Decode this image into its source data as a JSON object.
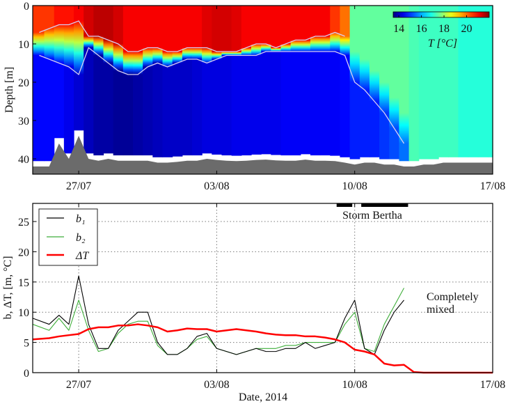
{
  "chart_data": [
    {
      "type": "heatmap",
      "ylabel": "Depth [m]",
      "ylim": [
        44,
        0
      ],
      "yticks": [
        0,
        10,
        20,
        30,
        40
      ],
      "xlim": [
        "2014-07-24T16:00",
        "2014-08-17T00:00"
      ],
      "xticks": [
        {
          "date": "2014-07-27T00:00",
          "label": "27/07"
        },
        {
          "date": "2014-08-03T00:00",
          "label": "03/08"
        },
        {
          "date": "2014-08-10T00:00",
          "label": "10/08"
        },
        {
          "date": "2014-08-17T00:00",
          "label": "17/08"
        }
      ],
      "colorbar": {
        "label": "T [°C]",
        "range": [
          13.5,
          22
        ],
        "ticks": [
          14,
          16,
          18,
          20
        ],
        "colormap": "jet"
      },
      "colors": {
        "seabed": "#6b6b6b",
        "isotherm_lines": "#d8cff2",
        "no_data": "#ffffff"
      },
      "x": [
        "2014-07-25T00:00",
        "2014-07-25T12:00",
        "2014-07-26T00:00",
        "2014-07-26T12:00",
        "2014-07-27T00:00",
        "2014-07-27T12:00",
        "2014-07-28T00:00",
        "2014-07-28T12:00",
        "2014-07-29T00:00",
        "2014-07-29T12:00",
        "2014-07-30T00:00",
        "2014-07-30T12:00",
        "2014-07-31T00:00",
        "2014-07-31T12:00",
        "2014-08-01T00:00",
        "2014-08-01T12:00",
        "2014-08-02T00:00",
        "2014-08-02T12:00",
        "2014-08-03T00:00",
        "2014-08-03T12:00",
        "2014-08-04T00:00",
        "2014-08-04T12:00",
        "2014-08-05T00:00",
        "2014-08-05T12:00",
        "2014-08-06T00:00",
        "2014-08-06T12:00",
        "2014-08-07T00:00",
        "2014-08-07T12:00",
        "2014-08-08T00:00",
        "2014-08-08T12:00",
        "2014-08-09T00:00",
        "2014-08-09T12:00",
        "2014-08-10T00:00",
        "2014-08-10T12:00",
        "2014-08-11T00:00",
        "2014-08-11T12:00",
        "2014-08-12T00:00",
        "2014-08-12T12:00",
        "2014-08-13T00:00",
        "2014-08-13T12:00",
        "2014-08-14T00:00",
        "2014-08-14T12:00",
        "2014-08-15T00:00",
        "2014-08-15T12:00",
        "2014-08-16T00:00",
        "2014-08-16T12:00",
        "2014-08-17T00:00"
      ],
      "surface_T": [
        20.5,
        20.5,
        20.8,
        20.8,
        21,
        21.3,
        21.5,
        21.5,
        21.3,
        21,
        21,
        21,
        21,
        21,
        21,
        21,
        21,
        21.2,
        21.3,
        21.3,
        21.2,
        21,
        21,
        21,
        21,
        21,
        21,
        21,
        21,
        21,
        20.5,
        20,
        17.5,
        17.5,
        17.5,
        17.5,
        17.5,
        17.5,
        17.3,
        17.2,
        17.2,
        17.2,
        17.2,
        17,
        17,
        17,
        17
      ],
      "upper_isotherm_depth": [
        7,
        6,
        5,
        5,
        4,
        8,
        8,
        9,
        10,
        12,
        12,
        11,
        11,
        12,
        12,
        11,
        11,
        11,
        12,
        12,
        12,
        11,
        10,
        10,
        11,
        10,
        9,
        9,
        8,
        8,
        7,
        8,
        null,
        null,
        null,
        null,
        null,
        null,
        null,
        null,
        null,
        null,
        null,
        null,
        null,
        null,
        null
      ],
      "lower_isotherm_depth": [
        13,
        14,
        15,
        16,
        18,
        11,
        13,
        15,
        17,
        18,
        18,
        16,
        15,
        16,
        15,
        14,
        14,
        15,
        14,
        13,
        13,
        13,
        13,
        12,
        12,
        12,
        12,
        12,
        12,
        12,
        12,
        13,
        20,
        22,
        25,
        28,
        32,
        36,
        null,
        null,
        null,
        null,
        null,
        null,
        null,
        null,
        null
      ],
      "deep_T": [
        14.6,
        14.6,
        14.6,
        14.4,
        14.2,
        14,
        13.8,
        13.8,
        13.7,
        13.7,
        13.8,
        13.9,
        14,
        14.1,
        14.1,
        14.1,
        14.2,
        14.3,
        14.3,
        14.3,
        14.4,
        14.4,
        14.4,
        14.4,
        14.4,
        14.5,
        14.5,
        14.5,
        14.5,
        14.5,
        14.5,
        14.6,
        14.8,
        14.8,
        14.8,
        15,
        15.2,
        15.5,
        null,
        null,
        null,
        null,
        null,
        null,
        null,
        null,
        null
      ],
      "seabed_depth": [
        42,
        42,
        36,
        40,
        34,
        40,
        40.5,
        40,
        40.5,
        40.5,
        40.5,
        40.5,
        41,
        41,
        40.8,
        40.5,
        40.5,
        40,
        40.3,
        40.5,
        40.6,
        40.5,
        40.3,
        40.2,
        40.4,
        40.5,
        40.5,
        40.2,
        40.5,
        40.5,
        40.6,
        41,
        41.5,
        41,
        41,
        41.5,
        41.5,
        42,
        42,
        41.5,
        41.5,
        41,
        41,
        41,
        41,
        41,
        41
      ]
    },
    {
      "type": "line",
      "xlabel": "Date, 2014",
      "ylabel": "b, ΔT, [m, °C]",
      "ylim": [
        0,
        28
      ],
      "yticks": [
        0,
        5,
        10,
        15,
        20,
        25
      ],
      "xlim": [
        "2014-07-24T16:00",
        "2014-08-17T00:00"
      ],
      "xticks": [
        {
          "date": "2014-07-27T00:00",
          "label": "27/07"
        },
        {
          "date": "2014-08-03T00:00",
          "label": "03/08"
        },
        {
          "date": "2014-08-10T00:00",
          "label": "10/08"
        },
        {
          "date": "2014-08-17T00:00",
          "label": "17/08"
        }
      ],
      "grid": true,
      "legend": "top-left",
      "x": [
        "2014-07-25T00:00",
        "2014-07-25T12:00",
        "2014-07-26T00:00",
        "2014-07-26T12:00",
        "2014-07-27T00:00",
        "2014-07-27T12:00",
        "2014-07-28T00:00",
        "2014-07-28T12:00",
        "2014-07-29T00:00",
        "2014-07-29T12:00",
        "2014-07-30T00:00",
        "2014-07-30T12:00",
        "2014-07-31T00:00",
        "2014-07-31T12:00",
        "2014-08-01T00:00",
        "2014-08-01T12:00",
        "2014-08-02T00:00",
        "2014-08-02T12:00",
        "2014-08-03T00:00",
        "2014-08-03T12:00",
        "2014-08-04T00:00",
        "2014-08-04T12:00",
        "2014-08-05T00:00",
        "2014-08-05T12:00",
        "2014-08-06T00:00",
        "2014-08-06T12:00",
        "2014-08-07T00:00",
        "2014-08-07T12:00",
        "2014-08-08T00:00",
        "2014-08-08T12:00",
        "2014-08-09T00:00",
        "2014-08-09T12:00",
        "2014-08-10T00:00",
        "2014-08-10T12:00",
        "2014-08-11T00:00",
        "2014-08-11T12:00",
        "2014-08-12T00:00",
        "2014-08-12T12:00",
        "2014-08-13T00:00",
        "2014-08-13T12:00",
        "2014-08-14T00:00",
        "2014-08-14T12:00",
        "2014-08-15T00:00",
        "2014-08-15T12:00",
        "2014-08-16T00:00",
        "2014-08-16T12:00",
        "2014-08-17T00:00"
      ],
      "series": [
        {
          "name": "b₁",
          "color": "#000000",
          "values": [
            9,
            8,
            9.5,
            8,
            16,
            8,
            4,
            4,
            7,
            8.5,
            10,
            10,
            5,
            3,
            3,
            4,
            6,
            6.5,
            4,
            3.5,
            3,
            3.5,
            4,
            3.5,
            3.5,
            4,
            4,
            5,
            4,
            4.5,
            5,
            9,
            12,
            4,
            3,
            7,
            10,
            12,
            null,
            null,
            null,
            null,
            null,
            null,
            null,
            null,
            null
          ]
        },
        {
          "name": "b₂",
          "color": "#3fae3a",
          "values": [
            8,
            7,
            9,
            7,
            12,
            7,
            3.5,
            4,
            6.5,
            8,
            8.5,
            8.5,
            4.5,
            3,
            3,
            4,
            5.5,
            6,
            4,
            3.5,
            3,
            3.5,
            4,
            4,
            4,
            4.5,
            4.5,
            5,
            5,
            5,
            5,
            8,
            10,
            4,
            3.5,
            8,
            11,
            14,
            null,
            null,
            null,
            null,
            null,
            null,
            null,
            null,
            null
          ]
        },
        {
          "name": "ΔT",
          "color": "#ff0000",
          "values": [
            5.5,
            5.7,
            6,
            6.2,
            6.4,
            7.2,
            7.5,
            7.5,
            7.8,
            7.8,
            8,
            7.8,
            7.5,
            6.8,
            7,
            7.3,
            7.2,
            7.2,
            6.8,
            7,
            7.2,
            7,
            6.8,
            6.5,
            6.3,
            6.2,
            6.2,
            6,
            6,
            5.8,
            5.5,
            5,
            3.8,
            3.5,
            3,
            1.5,
            1.2,
            1.3,
            0.1,
            0,
            0,
            0,
            0,
            0,
            0,
            0,
            0
          ]
        }
      ],
      "annotations": {
        "storm_label": "Storm Bertha",
        "storm_periods": [
          [
            "2014-08-09T02:00",
            "2014-08-09T21:00"
          ],
          [
            "2014-08-10T08:00",
            "2014-08-12T17:00"
          ]
        ],
        "mixed_label_line1": "Completely",
        "mixed_label_line2": "mixed"
      }
    }
  ]
}
